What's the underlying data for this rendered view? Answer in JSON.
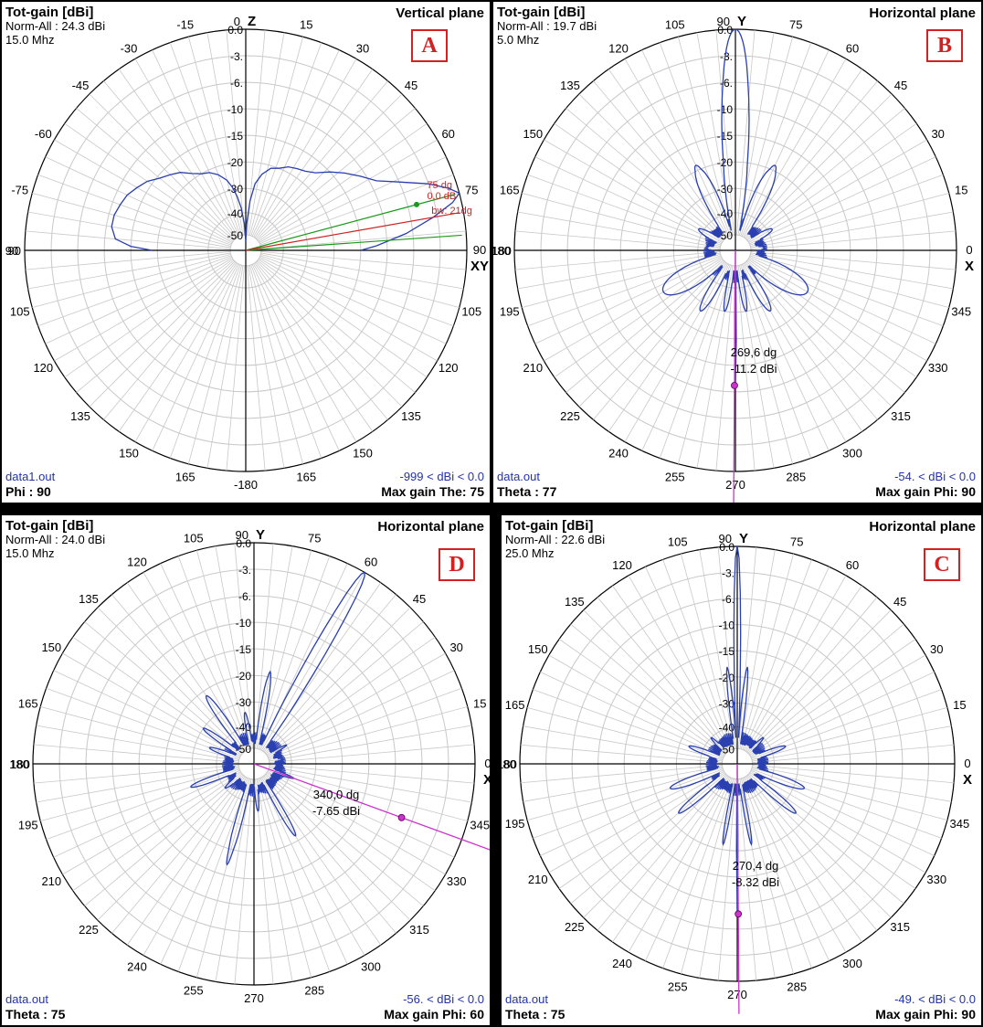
{
  "colors": {
    "trace": "#2a3fb0",
    "grid": "#c8c8c8",
    "axis": "#000000",
    "marker": "#cc33cc",
    "badge": "#d32020",
    "green": "#1a9a1a",
    "red": "#d32020"
  },
  "ring_labels": [
    "0.0",
    "-3.",
    "-6.",
    "-10",
    "-15",
    "-20",
    "-30",
    "-40",
    "-50"
  ],
  "chart_data": [
    {
      "id": "A",
      "type": "polar",
      "plane_type": "vertical",
      "title": "Tot-gain [dBi]",
      "norm": "Norm-All : 24.3 dBi",
      "freq": "15.0 Mhz",
      "plane": "Vertical plane",
      "badge": "A",
      "file": "data1.out",
      "param": "Phi : 90",
      "range": "-999 < dBi < 0.0",
      "max_gain": "Max gain The: 75",
      "axis_top": "Z",
      "axis_right": "XY",
      "label_top": "0",
      "label_right": "90",
      "angle_labels": [
        "0",
        "15",
        "30",
        "45",
        "60",
        "75",
        "90",
        "105",
        "120",
        "135",
        "150",
        "165",
        "-180",
        "165",
        "150",
        "135",
        "120",
        "105",
        "90",
        "-75",
        "-60",
        "-45",
        "-30",
        "-15"
      ],
      "marker": {
        "angle": "75 dg",
        "gain": "0.0 dB",
        "bw": "bw: 21dg"
      },
      "pattern": [
        [
          -90,
          -19
        ],
        [
          -88,
          -15
        ],
        [
          -85,
          -12
        ],
        [
          -80,
          -11
        ],
        [
          -75,
          -11
        ],
        [
          -70,
          -11.5
        ],
        [
          -65,
          -12
        ],
        [
          -60,
          -13
        ],
        [
          -55,
          -14
        ],
        [
          -50,
          -15.5
        ],
        [
          -45,
          -16.5
        ],
        [
          -40,
          -17.5
        ],
        [
          -35,
          -19
        ],
        [
          -30,
          -20
        ],
        [
          -25,
          -21
        ],
        [
          -20,
          -23
        ],
        [
          -15,
          -26
        ],
        [
          -12,
          -29
        ],
        [
          -9,
          -33
        ],
        [
          -6,
          -38
        ],
        [
          -3,
          -45
        ],
        [
          0,
          -50
        ],
        [
          2,
          -45
        ],
        [
          5,
          -35
        ],
        [
          8,
          -28
        ],
        [
          12,
          -24
        ],
        [
          17,
          -21
        ],
        [
          22,
          -20
        ],
        [
          27,
          -19
        ],
        [
          32,
          -18.5
        ],
        [
          37,
          -18
        ],
        [
          42,
          -17
        ],
        [
          47,
          -15
        ],
        [
          52,
          -13
        ],
        [
          57,
          -11
        ],
        [
          62,
          -9
        ],
        [
          66,
          -6
        ],
        [
          70,
          -3
        ],
        [
          73,
          -1
        ],
        [
          75,
          0
        ],
        [
          77,
          -1
        ],
        [
          80,
          -3.5
        ],
        [
          84,
          -7
        ],
        [
          88,
          -12
        ],
        [
          90,
          -15
        ]
      ]
    },
    {
      "id": "B",
      "type": "polar",
      "plane_type": "horizontal",
      "title": "Tot-gain [dBi]",
      "norm": "Norm-All : 19.7 dBi",
      "freq": "5.0 Mhz",
      "plane": "Horizontal plane",
      "badge": "B",
      "file": "data.out",
      "param": "Theta : 77",
      "range": "-54. < dBi < 0.0",
      "max_gain": "Max gain Phi: 90",
      "axis_top": "Y",
      "axis_right": "X",
      "label_top": "90",
      "label_right": "0",
      "angle_labels": [
        "0",
        "15",
        "30",
        "45",
        "60",
        "75",
        "90",
        "105",
        "120",
        "135",
        "150",
        "165",
        "180",
        "195",
        "210",
        "225",
        "240",
        "255",
        "270",
        "285",
        "300",
        "315",
        "330",
        "345"
      ],
      "marker": {
        "angle": "269,6 dg",
        "gain": "-11.2 dBi",
        "phi": 269.6,
        "db": -11.2
      },
      "lobes": [
        {
          "dir": 90,
          "peak": 0,
          "width": 6
        },
        {
          "dir": 65,
          "peak": -19,
          "width": 7
        },
        {
          "dir": 115,
          "peak": -19,
          "width": 7
        },
        {
          "dir": 30,
          "peak": -38,
          "width": 8
        },
        {
          "dir": 150,
          "peak": -38,
          "width": 8
        },
        {
          "dir": -30,
          "peak": -22,
          "width": 12
        },
        {
          "dir": 210,
          "peak": -22,
          "width": 12
        },
        {
          "dir": -60,
          "peak": -27,
          "width": 6
        },
        {
          "dir": 240,
          "peak": -27,
          "width": 6
        },
        {
          "dir": -80,
          "peak": -30,
          "width": 4
        },
        {
          "dir": 260,
          "peak": -30,
          "width": 4
        },
        {
          "dir": -90,
          "peak": -11.2,
          "width": 0.6
        },
        {
          "dir": 5,
          "peak": -44,
          "width": 10
        },
        {
          "dir": 175,
          "peak": -44,
          "width": 10
        }
      ]
    },
    {
      "id": "D",
      "type": "polar",
      "plane_type": "horizontal",
      "title": "Tot-gain [dBi]",
      "norm": "Norm-All : 24.0 dBi",
      "freq": "15.0 Mhz",
      "plane": "Horizontal plane",
      "badge": "D",
      "file": "data.out",
      "param": "Theta : 75",
      "range": "-56. < dBi < 0.0",
      "max_gain": "Max gain Phi: 60",
      "axis_top": "Y",
      "axis_right": "X",
      "label_top": "90",
      "label_right": "0",
      "angle_labels": [
        "0",
        "15",
        "30",
        "45",
        "60",
        "75",
        "90",
        "105",
        "120",
        "135",
        "150",
        "165",
        "180",
        "195",
        "210",
        "225",
        "240",
        "255",
        "270",
        "285",
        "300",
        "315",
        "330",
        "345"
      ],
      "marker": {
        "angle": "340,0 dg",
        "gain": "-7.65 dBi",
        "phi": 340.0,
        "db": -7.65
      },
      "lobes": [
        {
          "dir": 60,
          "peak": 0,
          "width": 3
        },
        {
          "dir": 80,
          "peak": -19,
          "width": 3
        },
        {
          "dir": 125,
          "peak": -22,
          "width": 4
        },
        {
          "dir": 145,
          "peak": -30,
          "width": 4
        },
        {
          "dir": 160,
          "peak": -36,
          "width": 5
        },
        {
          "dir": 200,
          "peak": -28,
          "width": 4
        },
        {
          "dir": 255,
          "peak": -17,
          "width": 3
        },
        {
          "dir": -60,
          "peak": -22,
          "width": 3
        },
        {
          "dir": -20,
          "peak": -38,
          "width": 4
        },
        {
          "dir": 10,
          "peak": -44,
          "width": 6
        },
        {
          "dir": 30,
          "peak": -40,
          "width": 4
        },
        {
          "dir": 100,
          "peak": -34,
          "width": 4
        },
        {
          "dir": 220,
          "peak": -40,
          "width": 6
        },
        {
          "dir": -85,
          "peak": -36,
          "width": 4
        }
      ]
    },
    {
      "id": "C",
      "type": "polar",
      "plane_type": "horizontal",
      "title": "Tot-gain [dBi]",
      "norm": "Norm-All : 22.6 dBi",
      "freq": "25.0 Mhz",
      "plane": "Horizontal plane",
      "badge": "C",
      "file": "data.out",
      "param": "Theta : 75",
      "range": "-49. < dBi < 0.0",
      "max_gain": "Max gain Phi: 90",
      "axis_top": "Y",
      "axis_right": "X",
      "label_top": "90",
      "label_right": "0",
      "angle_labels": [
        "0",
        "15",
        "30",
        "45",
        "60",
        "75",
        "90",
        "105",
        "120",
        "135",
        "150",
        "165",
        "180",
        "195",
        "210",
        "225",
        "240",
        "255",
        "270",
        "285",
        "300",
        "315",
        "330",
        "345"
      ],
      "marker": {
        "angle": "270,4 dg",
        "gain": "-8.32 dBi",
        "phi": 270.4,
        "db": -8.32
      },
      "lobes": [
        {
          "dir": 90,
          "peak": 0,
          "width": 1.5
        },
        {
          "dir": 84,
          "peak": -18,
          "width": 2
        },
        {
          "dir": 96,
          "peak": -18,
          "width": 2
        },
        {
          "dir": 20,
          "peak": -34,
          "width": 5
        },
        {
          "dir": 160,
          "peak": -34,
          "width": 5
        },
        {
          "dir": -20,
          "peak": -26,
          "width": 5
        },
        {
          "dir": 200,
          "peak": -26,
          "width": 5
        },
        {
          "dir": -40,
          "peak": -24,
          "width": 4
        },
        {
          "dir": 220,
          "peak": -24,
          "width": 4
        },
        {
          "dir": -80,
          "peak": -22,
          "width": 2
        },
        {
          "dir": 260,
          "peak": -22,
          "width": 2
        },
        {
          "dir": -90,
          "peak": -8.32,
          "width": 0.5
        },
        {
          "dir": 45,
          "peak": -40,
          "width": 5
        },
        {
          "dir": 135,
          "peak": -40,
          "width": 5
        }
      ]
    }
  ]
}
